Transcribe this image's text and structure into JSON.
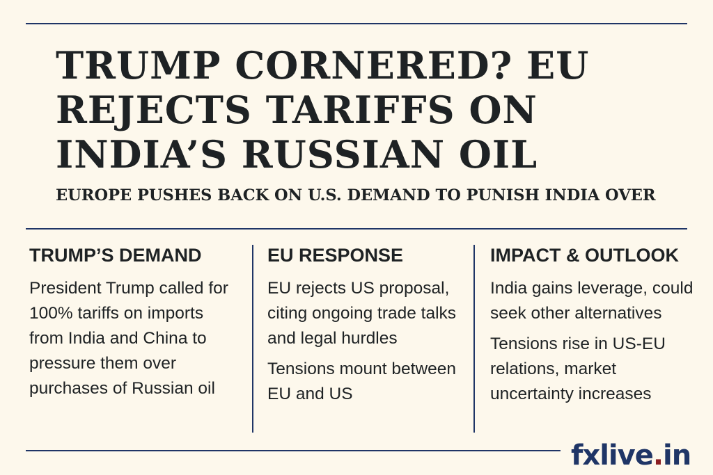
{
  "headline": "TRUMP CORNERED? EU REJECTS TARIFFS ON INDIA’S RUSSIAN OIL",
  "subheadline": "EUROPE PUSHES BACK ON U.S. DEMAND TO PUNISH INDIA OVER",
  "columns": [
    {
      "heading": "TRUMP’S DEMAND",
      "paragraphs": [
        "President Trump called for 100% tariffs on imports from India and China to pressure them over purchases of Russian oil"
      ]
    },
    {
      "heading": "EU RESPONSE",
      "paragraphs": [
        "EU rejects US proposal, citing ongoing trade talks and legal hurdles",
        "Tensions mount between EU and US"
      ]
    },
    {
      "heading": "IMPACT & OUTLOOK",
      "paragraphs": [
        "India gains leverage, could seek other alternatives",
        "Tensions rise in US-EU relations, market uncertainty increases"
      ]
    }
  ],
  "logo": {
    "name": "fxlive",
    "dot": ".",
    "tld": "in"
  },
  "colors": {
    "background": "#fdf8ec",
    "rule": "#1f3566",
    "logo_dot": "#8b1e22",
    "text": "#1e2224"
  }
}
